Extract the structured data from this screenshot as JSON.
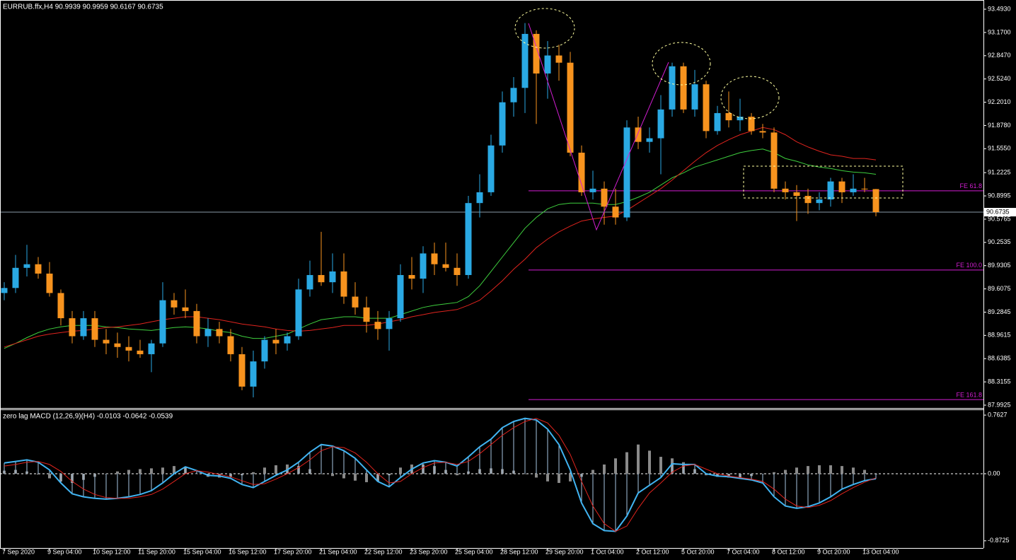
{
  "chart_data": [
    {
      "type": "candlestick",
      "title": "EURRUB.ffx,H4  90.9939 90.9959 90.6167 90.6735",
      "categories": [
        "7 Sep 2020",
        null,
        null,
        null,
        "9 Sep 04:00",
        null,
        null,
        null,
        "10 Sep 12:00",
        null,
        null,
        null,
        "11 Sep 20:00",
        null,
        null,
        null,
        "15 Sep 04:00",
        null,
        null,
        null,
        "16 Sep 12:00",
        null,
        null,
        null,
        "17 Sep 20:00",
        null,
        null,
        null,
        "21 Sep 04:00",
        null,
        null,
        null,
        "22 Sep 12:00",
        null,
        null,
        null,
        "23 Sep 20:00",
        null,
        null,
        null,
        "25 Sep 04:00",
        null,
        null,
        null,
        "28 Sep 12:00",
        null,
        null,
        null,
        "29 Sep 20:00",
        null,
        null,
        null,
        "1 Oct 04:00",
        null,
        null,
        null,
        "2 Oct 12:00",
        null,
        null,
        null,
        "5 Oct 20:00",
        null,
        null,
        null,
        "7 Oct 04:00",
        null,
        null,
        null,
        "8 Oct 12:00",
        null,
        null,
        null,
        "9 Oct 20:00",
        null,
        null,
        null,
        "13 Oct 04:00",
        null
      ],
      "open": [
        89.55,
        89.62,
        89.9,
        89.95,
        89.82,
        89.55,
        89.2,
        88.95,
        89.2,
        88.9,
        88.85,
        88.8,
        88.75,
        88.7,
        88.85,
        89.45,
        89.35,
        89.3,
        88.95,
        89.05,
        88.95,
        88.7,
        88.25,
        88.6,
        88.9,
        88.85,
        88.95,
        89.6,
        89.8,
        89.7,
        89.85,
        89.5,
        89.35,
        89.15,
        89.05,
        89.2,
        89.8,
        89.75,
        90.1,
        89.95,
        89.9,
        89.8,
        90.8,
        90.95,
        91.6,
        92.2,
        92.4,
        93.15,
        92.6,
        92.85,
        92.75,
        91.5,
        90.95,
        91.0,
        90.75,
        90.6,
        91.85,
        91.65,
        91.7,
        92.1,
        92.7,
        92.1,
        92.45,
        91.8,
        92.05,
        91.95,
        92.0,
        91.8,
        91.78,
        91.0,
        90.95,
        90.9,
        90.8,
        90.85,
        91.1,
        90.95,
        91.0,
        90.9939
      ],
      "high": [
        89.7,
        90.08,
        90.22,
        90.05,
        89.98,
        89.6,
        89.3,
        89.3,
        89.3,
        89.05,
        89.0,
        88.95,
        88.9,
        88.9,
        89.7,
        89.55,
        89.6,
        89.4,
        89.2,
        89.15,
        89.05,
        88.8,
        88.75,
        88.95,
        89.05,
        89.0,
        89.75,
        90.0,
        90.4,
        90.1,
        90.1,
        89.7,
        89.5,
        89.3,
        89.3,
        89.95,
        90.05,
        90.2,
        90.25,
        90.25,
        90.1,
        90.9,
        91.2,
        91.75,
        92.35,
        92.55,
        93.3,
        93.2,
        93.05,
        93.0,
        92.9,
        91.6,
        91.25,
        91.1,
        91.0,
        91.95,
        92.0,
        91.85,
        92.3,
        92.75,
        92.75,
        92.65,
        92.5,
        92.15,
        92.35,
        92.25,
        92.05,
        91.9,
        91.85,
        91.1,
        91.05,
        91.0,
        90.95,
        91.15,
        91.15,
        91.2,
        91.15,
        90.9959
      ],
      "low": [
        89.45,
        89.55,
        89.78,
        89.75,
        89.5,
        89.1,
        88.85,
        88.9,
        88.8,
        88.7,
        88.65,
        88.6,
        88.65,
        88.45,
        88.8,
        89.25,
        89.2,
        88.85,
        88.8,
        88.85,
        88.6,
        88.2,
        88.1,
        88.5,
        88.7,
        88.75,
        88.9,
        89.5,
        89.65,
        89.55,
        89.4,
        89.25,
        89.0,
        88.9,
        88.75,
        89.15,
        89.6,
        89.55,
        89.8,
        89.85,
        89.65,
        89.75,
        90.6,
        90.9,
        91.5,
        92.0,
        92.05,
        91.9,
        92.25,
        92.5,
        91.45,
        90.9,
        90.85,
        90.5,
        90.5,
        90.55,
        91.55,
        91.5,
        91.2,
        92.0,
        92.05,
        92.0,
        91.7,
        91.75,
        91.85,
        91.8,
        91.75,
        91.7,
        90.95,
        90.85,
        90.55,
        90.65,
        90.7,
        90.75,
        90.8,
        90.9,
        90.95,
        90.6167
      ],
      "close": [
        89.62,
        89.9,
        89.95,
        89.82,
        89.55,
        89.2,
        88.95,
        89.2,
        88.9,
        88.85,
        88.8,
        88.75,
        88.7,
        88.85,
        89.45,
        89.35,
        89.3,
        88.95,
        89.05,
        88.95,
        88.7,
        88.25,
        88.6,
        88.9,
        88.85,
        88.95,
        89.6,
        89.8,
        89.7,
        89.85,
        89.5,
        89.35,
        89.15,
        89.05,
        89.2,
        89.8,
        89.75,
        90.1,
        89.95,
        89.9,
        89.8,
        90.8,
        90.95,
        91.6,
        92.2,
        92.4,
        93.15,
        92.6,
        92.85,
        92.75,
        91.5,
        90.95,
        91.0,
        90.75,
        90.6,
        91.85,
        91.65,
        91.7,
        92.1,
        92.7,
        92.1,
        92.45,
        91.8,
        92.05,
        91.95,
        92.0,
        91.8,
        91.78,
        91.0,
        90.95,
        90.9,
        90.8,
        90.85,
        91.1,
        90.95,
        91.0,
        90.99,
        90.6735
      ],
      "up_color": "#2aa9e3",
      "down_color": "#f7931e",
      "series": [
        {
          "color": "#3ecf3e",
          "values": [
            88.78,
            88.85,
            88.93,
            89.0,
            89.05,
            89.08,
            89.1,
            89.1,
            89.1,
            89.08,
            89.07,
            89.05,
            89.04,
            89.03,
            89.05,
            89.07,
            89.08,
            89.07,
            89.05,
            89.02,
            89.0,
            88.95,
            88.92,
            88.92,
            88.95,
            88.98,
            89.05,
            89.12,
            89.18,
            89.2,
            89.22,
            89.22,
            89.2,
            89.2,
            89.2,
            89.25,
            89.3,
            89.35,
            89.38,
            89.4,
            89.42,
            89.5,
            89.65,
            89.85,
            90.05,
            90.25,
            90.45,
            90.6,
            90.72,
            90.78,
            90.8,
            90.8,
            90.8,
            90.78,
            90.78,
            90.82,
            90.88,
            90.95,
            91.05,
            91.15,
            91.22,
            91.3,
            91.35,
            91.4,
            91.45,
            91.5,
            91.53,
            91.55,
            91.5,
            91.42,
            91.38,
            91.33,
            91.3,
            91.28,
            91.25,
            91.23,
            91.22,
            91.2
          ]
        },
        {
          "color": "#e0241e",
          "values": [
            88.8,
            88.85,
            88.9,
            88.95,
            88.98,
            89.0,
            89.02,
            89.03,
            89.05,
            89.07,
            89.08,
            89.1,
            89.12,
            89.15,
            89.18,
            89.2,
            89.22,
            89.22,
            89.2,
            89.18,
            89.15,
            89.12,
            89.1,
            89.08,
            89.05,
            89.03,
            89.02,
            89.03,
            89.05,
            89.07,
            89.1,
            89.1,
            89.1,
            89.12,
            89.15,
            89.18,
            89.22,
            89.25,
            89.28,
            89.3,
            89.32,
            89.38,
            89.45,
            89.58,
            89.72,
            89.88,
            90.02,
            90.18,
            90.3,
            90.4,
            90.48,
            90.55,
            90.58,
            90.6,
            90.62,
            90.7,
            90.8,
            90.9,
            91.0,
            91.12,
            91.25,
            91.38,
            91.5,
            91.6,
            91.68,
            91.75,
            91.8,
            91.85,
            91.82,
            91.75,
            91.65,
            91.58,
            91.52,
            91.47,
            91.45,
            91.42,
            91.42,
            91.4
          ]
        }
      ],
      "levels": [
        {
          "label": "FE 61.8",
          "value": 90.97,
          "color": "#d21ed2"
        },
        {
          "label": "FE 100.0",
          "value": 89.87,
          "color": "#d21ed2"
        },
        {
          "label": "FE 161.8",
          "value": 88.07,
          "color": "#d21ed2"
        }
      ],
      "last_price": 90.6735,
      "ylim": [
        87.953,
        93.621
      ],
      "yticks": [
        {
          "value": 93.493,
          "label": "93.4930"
        },
        {
          "value": 93.17,
          "label": "93.1700"
        },
        {
          "value": 92.847,
          "label": "92.8470"
        },
        {
          "value": 92.524,
          "label": "92.5240"
        },
        {
          "value": 92.201,
          "label": "92.2010"
        },
        {
          "value": 91.878,
          "label": "91.8780"
        },
        {
          "value": 91.555,
          "label": "91.5550"
        },
        {
          "value": 91.2225,
          "label": "91.2225"
        },
        {
          "value": 90.8995,
          "label": "90.8995"
        },
        {
          "value": 90.5765,
          "label": "90.5765"
        },
        {
          "value": 90.2535,
          "label": "90.2535"
        },
        {
          "value": 89.9305,
          "label": "89.9305"
        },
        {
          "value": 89.6075,
          "label": "89.6075"
        },
        {
          "value": 89.2845,
          "label": "89.2845"
        },
        {
          "value": 88.9615,
          "label": "88.9615"
        },
        {
          "value": 88.6385,
          "label": "88.6385"
        },
        {
          "value": 88.3155,
          "label": "88.3155"
        },
        {
          "value": 87.9925,
          "label": "87.9925"
        }
      ]
    },
    {
      "type": "macd",
      "title": "zero lag MACD (12,26,9)(H4) -0.0103 -0.0642 -0.0539",
      "series": [
        {
          "kind": "bar",
          "color": "#8a8a8a",
          "values": [
            0.04,
            0.05,
            0.03,
            -0.01,
            -0.06,
            -0.1,
            -0.12,
            -0.08,
            -0.04,
            0.0,
            0.03,
            0.05,
            0.06,
            0.07,
            0.08,
            0.1,
            0.08,
            0.0,
            -0.04,
            -0.05,
            -0.04,
            -0.02,
            0.02,
            0.08,
            0.11,
            0.12,
            0.1,
            0.06,
            0.0,
            -0.03,
            -0.06,
            -0.09,
            -0.11,
            -0.1,
            -0.02,
            0.08,
            0.12,
            0.12,
            0.1,
            0.05,
            -0.02,
            0.03,
            0.06,
            0.07,
            0.06,
            0.04,
            0.0,
            -0.05,
            -0.1,
            -0.12,
            -0.1,
            -0.04,
            0.05,
            0.12,
            0.2,
            0.28,
            0.38,
            0.3,
            0.22,
            0.2,
            0.15,
            0.06,
            -0.02,
            -0.04,
            -0.05,
            -0.05,
            -0.03,
            0.0,
            0.02,
            0.05,
            0.08,
            0.1,
            0.11,
            0.11,
            0.1,
            0.08,
            0.05,
            -0.0103
          ]
        },
        {
          "kind": "line",
          "color": "#41b4f2",
          "stem_color": "#a9c6e2",
          "values": [
            0.14,
            0.16,
            0.18,
            0.15,
            0.05,
            -0.12,
            -0.26,
            -0.3,
            -0.32,
            -0.33,
            -0.32,
            -0.3,
            -0.27,
            -0.22,
            -0.12,
            0.0,
            0.09,
            0.04,
            -0.02,
            -0.03,
            -0.06,
            -0.14,
            -0.18,
            -0.1,
            -0.02,
            0.05,
            0.15,
            0.28,
            0.38,
            0.36,
            0.3,
            0.2,
            0.05,
            -0.1,
            -0.17,
            -0.05,
            0.06,
            0.14,
            0.17,
            0.15,
            0.1,
            0.22,
            0.35,
            0.45,
            0.6,
            0.68,
            0.72,
            0.7,
            0.58,
            0.38,
            0.05,
            -0.38,
            -0.65,
            -0.74,
            -0.75,
            -0.55,
            -0.25,
            -0.15,
            -0.05,
            0.13,
            0.12,
            0.12,
            0.0,
            -0.03,
            -0.04,
            -0.06,
            -0.08,
            -0.12,
            -0.3,
            -0.42,
            -0.45,
            -0.43,
            -0.38,
            -0.3,
            -0.2,
            -0.14,
            -0.09,
            -0.0642
          ]
        },
        {
          "kind": "line",
          "color": "#e0241e",
          "values": [
            0.1,
            0.12,
            0.15,
            0.16,
            0.12,
            0.03,
            -0.1,
            -0.2,
            -0.27,
            -0.31,
            -0.32,
            -0.32,
            -0.3,
            -0.27,
            -0.2,
            -0.1,
            0.0,
            0.04,
            0.02,
            -0.01,
            -0.04,
            -0.09,
            -0.14,
            -0.13,
            -0.07,
            0.0,
            0.08,
            0.18,
            0.3,
            0.35,
            0.34,
            0.27,
            0.15,
            0.0,
            -0.12,
            -0.1,
            0.0,
            0.08,
            0.14,
            0.15,
            0.12,
            0.16,
            0.26,
            0.38,
            0.5,
            0.6,
            0.68,
            0.72,
            0.66,
            0.5,
            0.25,
            -0.1,
            -0.42,
            -0.65,
            -0.75,
            -0.68,
            -0.45,
            -0.25,
            -0.12,
            0.02,
            0.1,
            0.12,
            0.06,
            0.0,
            -0.03,
            -0.05,
            -0.07,
            -0.1,
            -0.2,
            -0.33,
            -0.42,
            -0.44,
            -0.41,
            -0.35,
            -0.26,
            -0.18,
            -0.11,
            -0.0539
          ]
        }
      ],
      "ylim": [
        -0.966,
        0.837
      ],
      "yticks": [
        {
          "value": 0.7627,
          "label": "0.7627"
        },
        {
          "value": 0,
          "label": "0.00"
        },
        {
          "value": -0.8725,
          "label": "-0.8725"
        }
      ]
    }
  ]
}
